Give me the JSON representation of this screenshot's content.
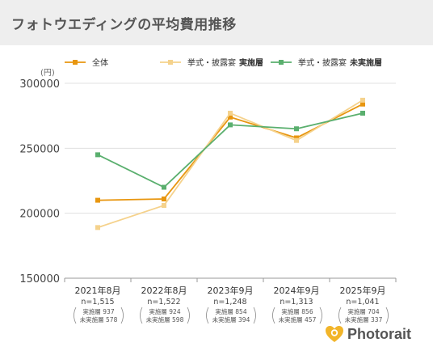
{
  "page": {
    "title": "フォトウエディングの平均費用推移",
    "brand": "Photorait"
  },
  "colors": {
    "header_bg": "#eeeeee",
    "all": "#e8960f",
    "ceremony_held": "#f5d28c",
    "ceremony_not_held": "#5aaf6e",
    "brand_icon": "#f2b52a",
    "grid": "#e0e0e0",
    "axis": "#999999"
  },
  "chart_data": {
    "type": "line",
    "unit_label": "(円)",
    "ylim": [
      150000,
      300000
    ],
    "y_ticks": [
      "300000",
      "250000",
      "200000",
      "150000"
    ],
    "grid": true,
    "legend_position": "top",
    "categories": [
      {
        "period": "2021年8月",
        "n": "n=1,515",
        "held": "実施層 937",
        "not_held": "未実施層 578"
      },
      {
        "period": "2022年8月",
        "n": "n=1,522",
        "held": "実施層 924",
        "not_held": "未実施層 598"
      },
      {
        "period": "2023年9月",
        "n": "n=1,248",
        "held": "実施層 854",
        "not_held": "未実施層 394"
      },
      {
        "period": "2024年9月",
        "n": "n=1,313",
        "held": "実施層 856",
        "not_held": "未実施層 457"
      },
      {
        "period": "2025年9月",
        "n": "n=1,041",
        "held": "実施層 704",
        "not_held": "未実施層 337"
      }
    ],
    "series": [
      {
        "key": "all",
        "name": "全体",
        "name_bold": "",
        "color": "#e8960f",
        "values": [
          210000,
          211000,
          274000,
          258000,
          284000
        ]
      },
      {
        "key": "held",
        "name": "挙式・披露宴",
        "name_bold": "実施層",
        "color": "#f5d28c",
        "values": [
          189000,
          206000,
          277000,
          256000,
          287000
        ]
      },
      {
        "key": "not_held",
        "name": "挙式・披露宴",
        "name_bold": "未実施層",
        "color": "#5aaf6e",
        "values": [
          245000,
          220000,
          268000,
          265000,
          277000
        ]
      }
    ]
  }
}
